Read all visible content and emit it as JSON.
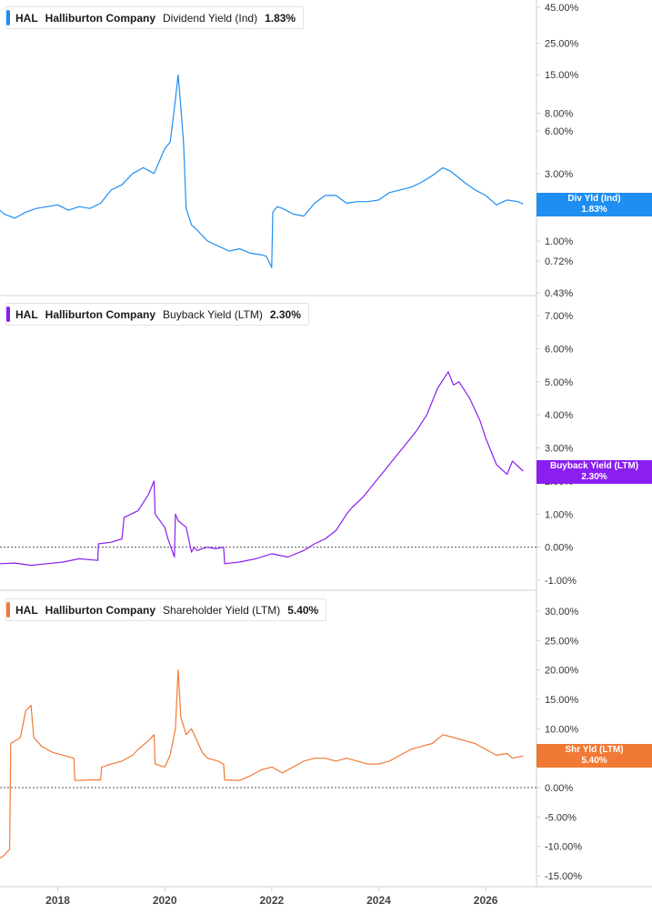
{
  "chart_data": [
    {
      "type": "line",
      "ticker": "HAL",
      "company": "Halliburton Company",
      "metric": "Dividend Yield (Ind)",
      "current_value": "1.83%",
      "flag_label": "Div Yld (Ind)",
      "flag_value": "1.83%",
      "color": "#1f8ef1",
      "scale": "log",
      "y_ticks": [
        "45.00%",
        "25.00%",
        "15.00%",
        "8.00%",
        "6.00%",
        "3.00%",
        "2.00%",
        "1.00%",
        "0.72%",
        "0.43%"
      ],
      "y_tick_values": [
        45,
        25,
        15,
        8,
        6,
        3,
        2,
        1,
        0.72,
        0.43
      ],
      "ylim": [
        0.43,
        45
      ],
      "series": [
        {
          "x": [
            2016.92,
            2017.0,
            2017.2,
            2017.4,
            2017.6,
            2017.8,
            2018.0,
            2018.2,
            2018.4,
            2018.6,
            2018.8,
            2019.0,
            2019.2,
            2019.4,
            2019.6,
            2019.8,
            2020.0,
            2020.1,
            2020.15,
            2020.2,
            2020.25,
            2020.3,
            2020.35,
            2020.4,
            2020.5,
            2020.6,
            2020.8,
            2021.0,
            2021.2,
            2021.4,
            2021.6,
            2021.8,
            2021.9,
            2022.0,
            2022.02,
            2022.1,
            2022.2,
            2022.4,
            2022.6,
            2022.8,
            2023.0,
            2023.2,
            2023.4,
            2023.6,
            2023.8,
            2024.0,
            2024.2,
            2024.4,
            2024.6,
            2024.8,
            2025.0,
            2025.2,
            2025.35,
            2025.5,
            2025.6,
            2025.8,
            2026.0,
            2026.2,
            2026.4,
            2026.6,
            2026.7
          ],
          "y": [
            1.65,
            1.55,
            1.45,
            1.6,
            1.7,
            1.75,
            1.8,
            1.65,
            1.75,
            1.7,
            1.85,
            2.3,
            2.5,
            3.0,
            3.3,
            3.0,
            4.5,
            5.0,
            7.0,
            10.0,
            15.0,
            9.0,
            5.0,
            1.7,
            1.3,
            1.2,
            1.0,
            0.92,
            0.85,
            0.88,
            0.82,
            0.8,
            0.78,
            0.65,
            1.6,
            1.75,
            1.7,
            1.55,
            1.5,
            1.85,
            2.1,
            2.1,
            1.85,
            1.9,
            1.9,
            1.95,
            2.2,
            2.3,
            2.4,
            2.6,
            2.9,
            3.3,
            3.1,
            2.8,
            2.6,
            2.3,
            2.1,
            1.8,
            1.95,
            1.9,
            1.83
          ]
        }
      ]
    },
    {
      "type": "line",
      "ticker": "HAL",
      "company": "Halliburton Company",
      "metric": "Buyback Yield (LTM)",
      "current_value": "2.30%",
      "flag_label": "Buyback Yield (LTM)",
      "flag_value": "2.30%",
      "color": "#8a1ff0",
      "scale": "linear",
      "y_ticks": [
        "7.00%",
        "6.00%",
        "5.00%",
        "4.00%",
        "3.00%",
        "2.00%",
        "1.00%",
        "0.00%",
        "-1.00%"
      ],
      "y_tick_values": [
        7,
        6,
        5,
        4,
        3,
        2,
        1,
        0,
        -1
      ],
      "ylim": [
        -1.0,
        7.0
      ],
      "zero_line": true,
      "series": [
        {
          "x": [
            2016.92,
            2017.2,
            2017.5,
            2017.8,
            2018.1,
            2018.4,
            2018.75,
            2018.76,
            2019.0,
            2019.2,
            2019.24,
            2019.5,
            2019.7,
            2019.8,
            2019.82,
            2020.0,
            2020.05,
            2020.18,
            2020.2,
            2020.25,
            2020.4,
            2020.5,
            2020.55,
            2020.6,
            2020.8,
            2020.95,
            2021.1,
            2021.12,
            2021.4,
            2021.7,
            2022.0,
            2022.3,
            2022.6,
            2022.8,
            2023.0,
            2023.2,
            2023.4,
            2023.5,
            2023.7,
            2023.9,
            2024.1,
            2024.3,
            2024.5,
            2024.7,
            2024.9,
            2025.1,
            2025.3,
            2025.4,
            2025.5,
            2025.7,
            2025.9,
            2026.0,
            2026.1,
            2026.2,
            2026.4,
            2026.5,
            2026.7
          ],
          "y": [
            -0.5,
            -0.48,
            -0.55,
            -0.5,
            -0.45,
            -0.35,
            -0.4,
            0.1,
            0.15,
            0.25,
            0.9,
            1.1,
            1.6,
            2.0,
            1.0,
            0.6,
            0.3,
            -0.3,
            1.0,
            0.8,
            0.6,
            -0.15,
            0.0,
            -0.1,
            0.0,
            -0.05,
            0.0,
            -0.5,
            -0.45,
            -0.35,
            -0.2,
            -0.3,
            -0.1,
            0.1,
            0.25,
            0.5,
            1.0,
            1.2,
            1.5,
            1.9,
            2.3,
            2.7,
            3.1,
            3.5,
            4.0,
            4.8,
            5.3,
            4.9,
            5.0,
            4.5,
            3.8,
            3.3,
            2.9,
            2.5,
            2.2,
            2.6,
            2.3
          ]
        }
      ]
    },
    {
      "type": "line",
      "ticker": "HAL",
      "company": "Halliburton Company",
      "metric": "Shareholder Yield (LTM)",
      "current_value": "5.40%",
      "flag_label": "Shr Yld (LTM)",
      "flag_value": "5.40%",
      "color": "#f07a35",
      "scale": "linear",
      "y_ticks": [
        "30.00%",
        "25.00%",
        "20.00%",
        "15.00%",
        "10.00%",
        "5.00%",
        "0.00%",
        "-5.00%",
        "-10.00%",
        "-15.00%"
      ],
      "y_tick_values": [
        30,
        25,
        20,
        15,
        10,
        5,
        0,
        -5,
        -10,
        -15
      ],
      "ylim": [
        -15,
        30
      ],
      "zero_line": true,
      "x_ticks": [
        "2018",
        "2020",
        "2022",
        "2024",
        "2026"
      ],
      "x_tick_values": [
        2018,
        2020,
        2022,
        2024,
        2026
      ],
      "series": [
        {
          "x": [
            2016.92,
            2017.0,
            2017.1,
            2017.12,
            2017.3,
            2017.4,
            2017.5,
            2017.55,
            2017.7,
            2017.9,
            2018.1,
            2018.3,
            2018.32,
            2018.6,
            2018.8,
            2018.82,
            2019.0,
            2019.2,
            2019.4,
            2019.5,
            2019.7,
            2019.8,
            2019.82,
            2020.0,
            2020.1,
            2020.2,
            2020.25,
            2020.3,
            2020.4,
            2020.5,
            2020.6,
            2020.7,
            2020.8,
            2021.0,
            2021.1,
            2021.12,
            2021.4,
            2021.6,
            2021.8,
            2022.0,
            2022.2,
            2022.4,
            2022.6,
            2022.8,
            2023.0,
            2023.2,
            2023.4,
            2023.6,
            2023.8,
            2024.0,
            2024.2,
            2024.4,
            2024.6,
            2024.8,
            2025.0,
            2025.2,
            2025.4,
            2025.6,
            2025.8,
            2026.0,
            2026.2,
            2026.4,
            2026.5,
            2026.7
          ],
          "y": [
            -12.0,
            -11.5,
            -10.5,
            7.5,
            8.5,
            13.0,
            14.0,
            8.5,
            7.0,
            6.0,
            5.5,
            5.0,
            1.2,
            1.3,
            1.3,
            3.5,
            4.0,
            4.5,
            5.5,
            6.5,
            8.0,
            9.0,
            4.0,
            3.5,
            5.5,
            10.0,
            20.0,
            12.0,
            9.0,
            10.0,
            8.0,
            6.0,
            5.0,
            4.5,
            4.0,
            1.3,
            1.2,
            2.0,
            3.0,
            3.5,
            2.5,
            3.5,
            4.5,
            5.0,
            5.0,
            4.5,
            5.0,
            4.5,
            4.0,
            4.0,
            4.5,
            5.5,
            6.5,
            7.0,
            7.5,
            9.0,
            8.5,
            8.0,
            7.5,
            6.5,
            5.5,
            5.8,
            5.0,
            5.4
          ]
        }
      ]
    }
  ]
}
